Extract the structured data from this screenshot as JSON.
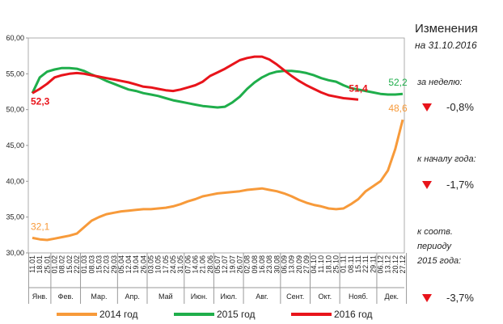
{
  "chart_data": {
    "type": "line",
    "categories": [
      "11.01",
      "18.01",
      "25.01",
      "01.02",
      "08.02",
      "15.02",
      "22.02",
      "01.03",
      "08.03",
      "15.03",
      "22.03",
      "29.03",
      "05.04",
      "12.04",
      "19.04",
      "26.04",
      "03.05",
      "10.05",
      "17.05",
      "24.05",
      "31.05",
      "07.06",
      "14.06",
      "21.06",
      "28.06",
      "05.07",
      "12.07",
      "19.07",
      "26.07",
      "02.08",
      "09.08",
      "16.08",
      "23.08",
      "30.08",
      "06.09",
      "13.09",
      "20.09",
      "27.09",
      "04.10",
      "11.10",
      "18.10",
      "25.10",
      "01.11",
      "08.11",
      "15.11",
      "22.11",
      "29.11",
      "06.12",
      "13.12",
      "20.12",
      "27.12"
    ],
    "months": [
      "Янв.",
      "Фев.",
      "Мар.",
      "Апр.",
      "Май",
      "Июн.",
      "Июл.",
      "Авг.",
      "Сент.",
      "Окт.",
      "Нояб.",
      "Дек."
    ],
    "ylim": [
      30,
      60
    ],
    "yticks": [
      {
        "value": 30,
        "label": "30,00"
      },
      {
        "value": 35,
        "label": "35,00"
      },
      {
        "value": 40,
        "label": "40,00"
      },
      {
        "value": 45,
        "label": "45,00"
      },
      {
        "value": 50,
        "label": "50,00"
      },
      {
        "value": 55,
        "label": "55,00"
      },
      {
        "value": 60,
        "label": "60,00"
      }
    ],
    "series": [
      {
        "name": "2014 год",
        "color": "#f79a3a",
        "values": [
          32.1,
          31.9,
          31.8,
          32.0,
          32.2,
          32.4,
          32.7,
          33.6,
          34.5,
          35.0,
          35.4,
          35.6,
          35.8,
          35.9,
          36.0,
          36.1,
          36.1,
          36.2,
          36.3,
          36.5,
          36.8,
          37.2,
          37.5,
          37.9,
          38.1,
          38.3,
          38.4,
          38.5,
          38.6,
          38.8,
          38.9,
          39.0,
          38.8,
          38.6,
          38.3,
          37.9,
          37.4,
          37.0,
          36.7,
          36.5,
          36.2,
          36.1,
          36.2,
          36.8,
          37.5,
          38.6,
          39.3,
          40.0,
          41.5,
          44.5,
          48.6
        ],
        "value_labels": {
          "0": "32,1",
          "50": "48,6"
        }
      },
      {
        "name": "2015 год",
        "color": "#1fae4b",
        "values": [
          52.3,
          54.5,
          55.3,
          55.6,
          55.8,
          55.8,
          55.7,
          55.4,
          54.9,
          54.5,
          54.0,
          53.6,
          53.2,
          52.8,
          52.6,
          52.3,
          52.1,
          51.9,
          51.6,
          51.3,
          51.1,
          50.9,
          50.7,
          50.5,
          50.4,
          50.3,
          50.4,
          51.0,
          51.8,
          52.9,
          53.8,
          54.5,
          55.0,
          55.3,
          55.4,
          55.4,
          55.3,
          55.1,
          54.8,
          54.4,
          54.1,
          53.9,
          53.4,
          53.0,
          52.8,
          52.6,
          52.4,
          52.2,
          52.1,
          52.1,
          52.2
        ],
        "value_labels": {
          "50": "52,2"
        }
      },
      {
        "name": "2016 год",
        "color": "#e8141b",
        "values": [
          52.3,
          52.9,
          53.6,
          54.5,
          54.8,
          55.0,
          55.1,
          55.0,
          54.8,
          54.6,
          54.4,
          54.2,
          54.0,
          53.8,
          53.5,
          53.2,
          53.1,
          52.9,
          52.7,
          52.6,
          52.8,
          53.1,
          53.4,
          53.9,
          54.7,
          55.2,
          55.7,
          56.3,
          56.9,
          57.2,
          57.4,
          57.4,
          57.0,
          56.3,
          55.5,
          54.7,
          54.0,
          53.4,
          52.9,
          52.4,
          52.0,
          51.8,
          51.6,
          51.5,
          51.4,
          null,
          null,
          null,
          null,
          null,
          null
        ],
        "value_labels": {
          "0": "52,3",
          "44": "51,4"
        }
      }
    ]
  },
  "panel": {
    "title": "Изменения",
    "date": "на 31.10.2016",
    "items": [
      {
        "label": [
          "за неделю:"
        ],
        "value": "-0,8%"
      },
      {
        "label": [
          "к началу года:"
        ],
        "value": "-1,7%"
      },
      {
        "label": [
          "к соотв.",
          "периоду",
          "2015 года:"
        ],
        "value": "-3,7%"
      }
    ]
  }
}
